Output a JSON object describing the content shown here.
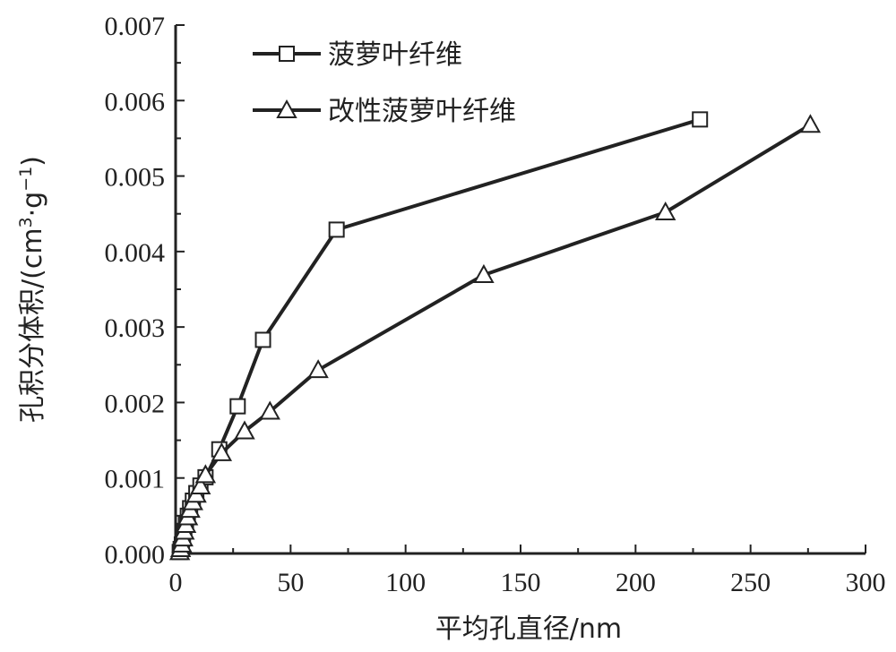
{
  "chart_data": {
    "type": "line",
    "xlabel": "平均孔直径/nm",
    "ylabel_main": "孔积分体积/(cm",
    "ylabel_sup1": "3",
    "ylabel_mid": "·g",
    "ylabel_sup2": "−1",
    "ylabel_end": ")",
    "xlim": [
      0,
      300
    ],
    "ylim": [
      0,
      0.007
    ],
    "x_ticks": [
      0,
      50,
      100,
      150,
      200,
      250,
      300
    ],
    "x_tick_labels": [
      "0",
      "50",
      "100",
      "150",
      "200",
      "250",
      "300"
    ],
    "y_ticks": [
      0,
      0.001,
      0.002,
      0.003,
      0.004,
      0.005,
      0.006,
      0.007
    ],
    "y_tick_labels": [
      "0.000",
      "0.001",
      "0.002",
      "0.003",
      "0.004",
      "0.005",
      "0.006",
      "0.007"
    ],
    "legend_position": "top-left",
    "grid": false,
    "series": [
      {
        "name": "菠萝叶纤维",
        "marker": "square",
        "color": "#222222",
        "x": [
          1.8,
          2.2,
          2.7,
          3.2,
          3.8,
          4.5,
          5.3,
          6.3,
          7.5,
          9.0,
          10.8,
          13.0,
          19.0,
          27.0,
          38.0,
          70.0,
          228.0
        ],
        "y": [
          2e-05,
          6e-05,
          0.00012,
          0.0002,
          0.0003,
          0.0004,
          0.0005,
          0.0006,
          0.0007,
          0.0008,
          0.0009,
          0.00101,
          0.00138,
          0.00195,
          0.00283,
          0.00429,
          0.00575
        ]
      },
      {
        "name": "改性菠萝叶纤维",
        "marker": "triangle",
        "color": "#222222",
        "x": [
          1.8,
          2.2,
          2.7,
          3.2,
          3.8,
          4.5,
          5.3,
          6.3,
          7.5,
          9.0,
          10.8,
          13.0,
          20.0,
          30.0,
          41.0,
          62.0,
          134.0,
          213.0,
          276.0
        ],
        "y": [
          2e-05,
          6e-05,
          0.00012,
          0.0002,
          0.00029,
          0.00038,
          0.00048,
          0.00058,
          0.00068,
          0.00078,
          0.00089,
          0.00104,
          0.00133,
          0.00162,
          0.00188,
          0.00243,
          0.00369,
          0.00452,
          0.00568
        ]
      }
    ]
  }
}
